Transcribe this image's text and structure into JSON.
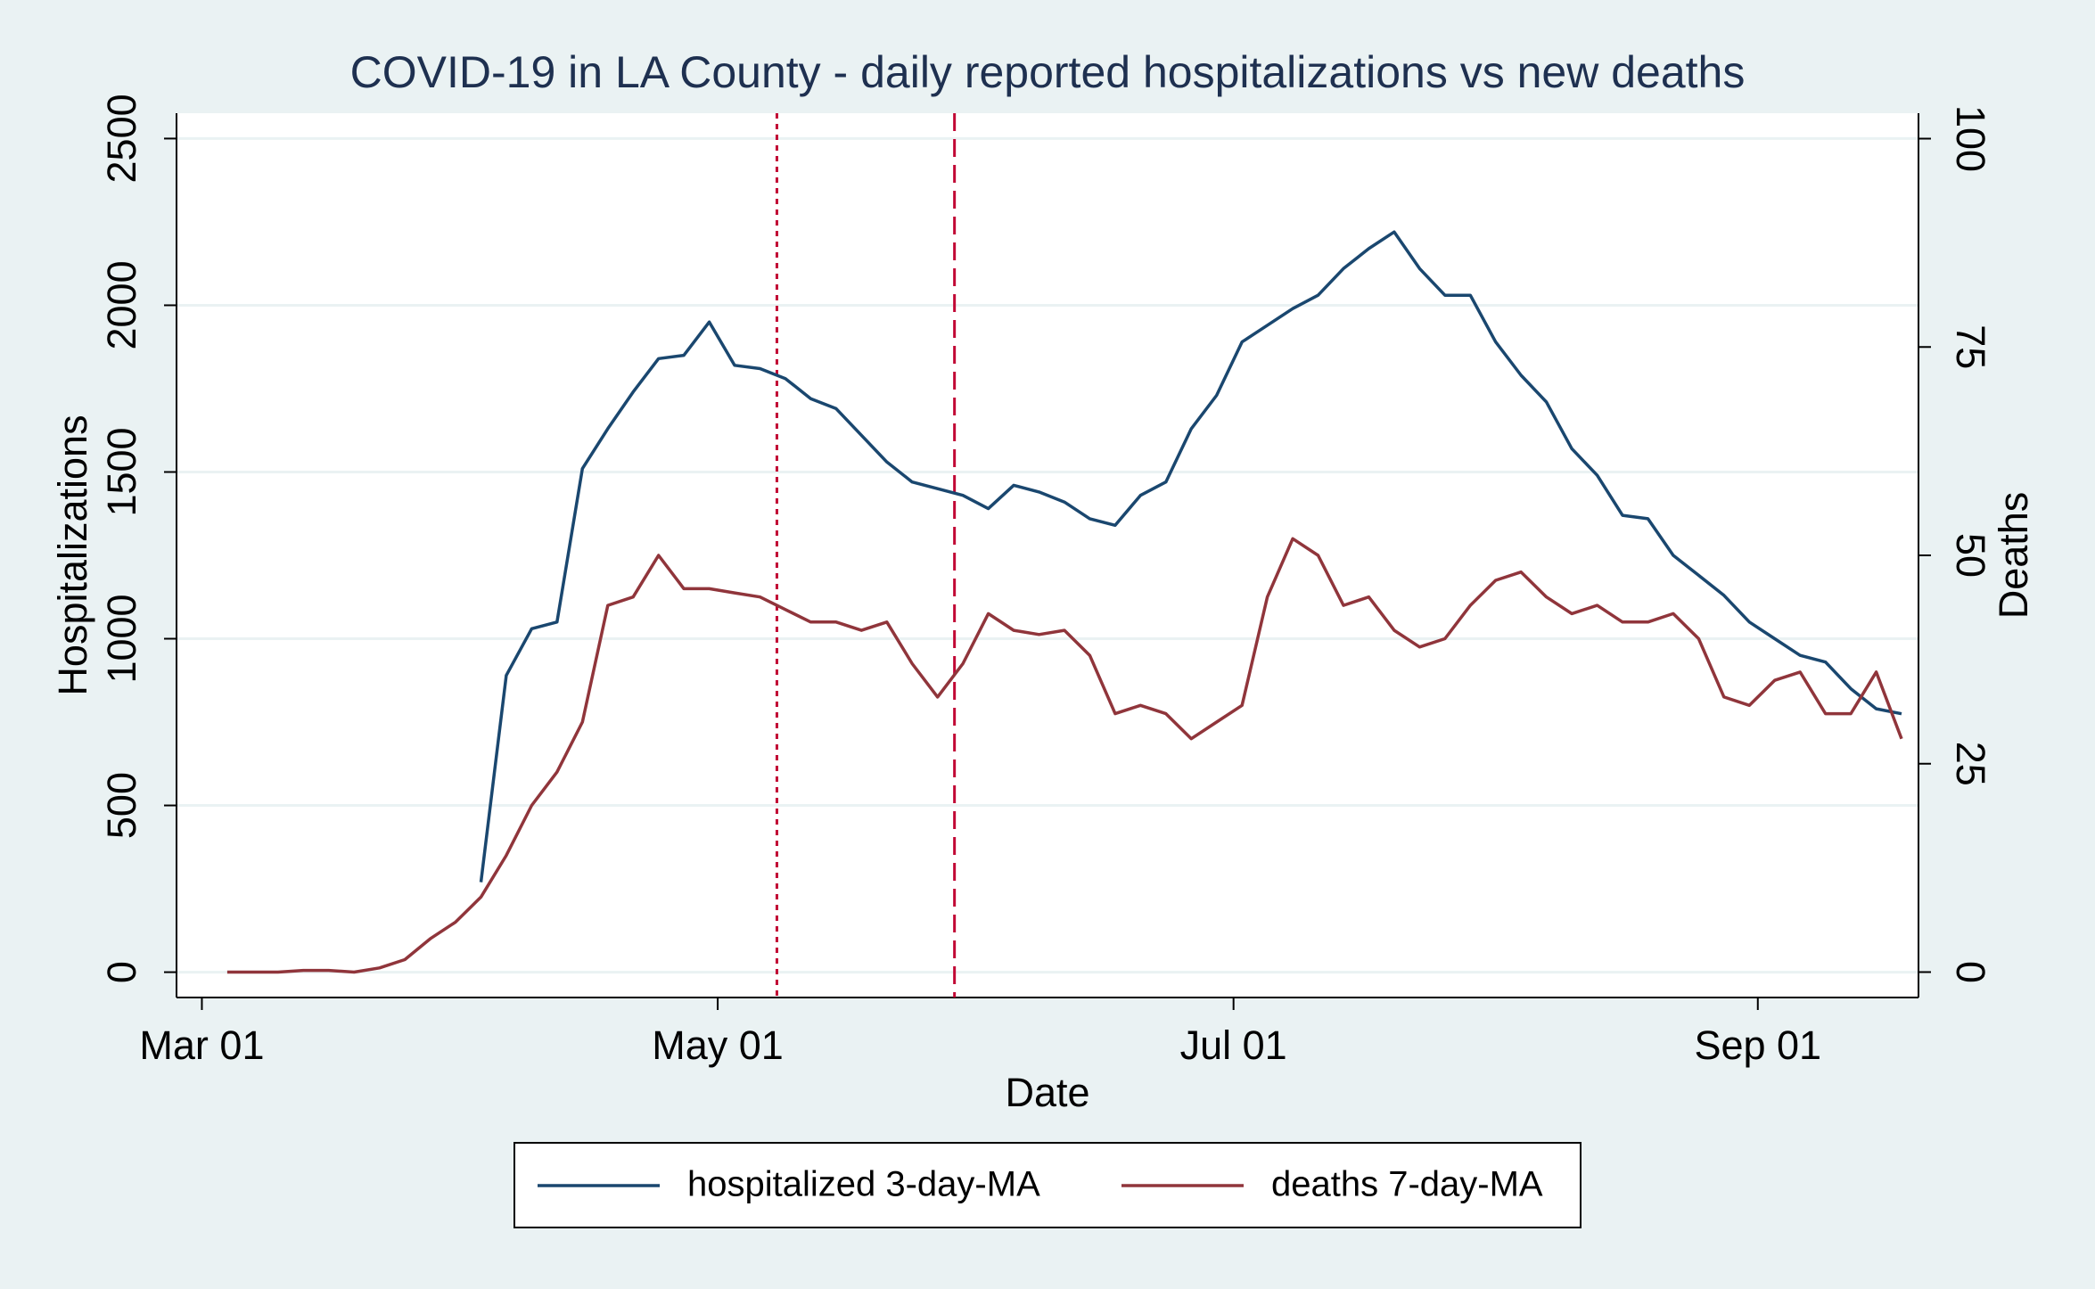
{
  "chart_data": {
    "type": "line",
    "title": "COVID-19 in LA County - daily reported hospitalizations vs new deaths",
    "x_label": "Date",
    "y_label": "Hospitalizations",
    "y2_label": "Deaths",
    "x": [
      "Mar 04",
      "Mar 07",
      "Mar 10",
      "Mar 13",
      "Mar 16",
      "Mar 19",
      "Mar 22",
      "Mar 25",
      "Mar 28",
      "Mar 31",
      "Apr 03",
      "Apr 06",
      "Apr 09",
      "Apr 12",
      "Apr 15",
      "Apr 18",
      "Apr 21",
      "Apr 24",
      "Apr 27",
      "Apr 30",
      "May 03",
      "May 06",
      "May 09",
      "May 12",
      "May 15",
      "May 18",
      "May 21",
      "May 24",
      "May 27",
      "May 30",
      "Jun 02",
      "Jun 05",
      "Jun 08",
      "Jun 11",
      "Jun 14",
      "Jun 17",
      "Jun 20",
      "Jun 23",
      "Jun 26",
      "Jun 29",
      "Jul 02",
      "Jul 05",
      "Jul 08",
      "Jul 11",
      "Jul 14",
      "Jul 17",
      "Jul 20",
      "Jul 23",
      "Jul 26",
      "Jul 29",
      "Aug 01",
      "Aug 04",
      "Aug 07",
      "Aug 10",
      "Aug 13",
      "Aug 16",
      "Aug 19",
      "Aug 22",
      "Aug 25",
      "Aug 28",
      "Aug 31",
      "Sep 03",
      "Sep 06",
      "Sep 09",
      "Sep 12",
      "Sep 15",
      "Sep 18"
    ],
    "xlim": [
      "Feb 27",
      "Sep 20"
    ],
    "xticks": [
      "Mar 01",
      "May 01",
      "Jul 01",
      "Sep 01"
    ],
    "ylim": [
      -76,
      2576
    ],
    "yticks": [
      0,
      500,
      1000,
      1500,
      2000,
      2500
    ],
    "y2lim": [
      -3.05,
      103.05
    ],
    "y2ticks": [
      0,
      25,
      50,
      75,
      100
    ],
    "grid": true,
    "legend": "bottom",
    "series": [
      {
        "name": "hospitalized 3-day-MA",
        "color": "#1a476f",
        "values": [
          null,
          null,
          null,
          null,
          null,
          null,
          null,
          null,
          null,
          null,
          270,
          890,
          1030,
          1050,
          1510,
          1630,
          1740,
          1840,
          1850,
          1950,
          1820,
          1810,
          1780,
          1720,
          1690,
          1610,
          1530,
          1470,
          1450,
          1430,
          1390,
          1460,
          1440,
          1410,
          1360,
          1340,
          1430,
          1470,
          1630,
          1730,
          1890,
          1940,
          1990,
          2030,
          2110,
          2170,
          2220,
          2110,
          2030,
          2030,
          1890,
          1790,
          1710,
          1570,
          1490,
          1370,
          1360,
          1250,
          1190,
          1130,
          1050,
          1000,
          950,
          930,
          850,
          790,
          775
        ]
      },
      {
        "name": "deaths 7-day-MA",
        "color": "#90353b",
        "axis": "y2",
        "values": [
          0,
          0,
          0,
          0.2,
          0.2,
          0,
          0.5,
          1.5,
          4,
          6,
          9,
          14,
          20,
          24,
          30,
          44,
          45,
          50,
          46,
          46,
          45.5,
          45,
          43.5,
          42,
          42,
          41,
          42,
          37,
          33,
          37,
          43,
          41,
          40.5,
          41,
          38,
          31,
          32,
          31,
          28,
          30,
          32,
          45,
          52,
          50,
          44,
          45,
          41,
          39,
          40,
          44,
          47,
          48,
          45,
          43,
          44,
          42,
          42,
          43,
          40,
          33,
          32,
          35,
          36,
          31,
          31,
          36,
          28
        ]
      }
    ],
    "vlines": [
      {
        "x": "May 08",
        "style": "dotted",
        "color": "#c10534"
      },
      {
        "x": "May 29",
        "style": "dashed",
        "color": "#c10534"
      }
    ]
  }
}
